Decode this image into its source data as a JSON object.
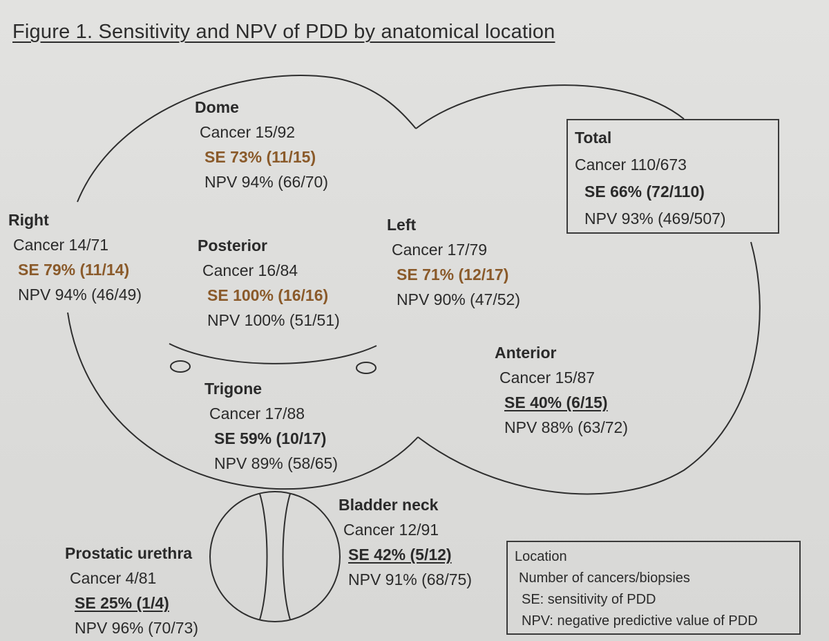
{
  "title": "Figure 1. Sensitivity and NPV of PDD by anatomical location",
  "colors": {
    "se_highlight": "#8a5a2a",
    "text": "#2a2a2a",
    "outline": "#3a3a3a"
  },
  "regions": {
    "dome": {
      "name": "Dome",
      "cancer": "Cancer 15/92",
      "se": "SE 73% (11/15)",
      "npv": "NPV 94% (66/70)"
    },
    "right": {
      "name": "Right",
      "cancer": "Cancer 14/71",
      "se": "SE 79% (11/14)",
      "npv": "NPV 94% (46/49)"
    },
    "posterior": {
      "name": "Posterior",
      "cancer": "Cancer 16/84",
      "se": "SE 100% (16/16)",
      "npv": "NPV 100% (51/51)"
    },
    "left": {
      "name": "Left",
      "cancer": "Cancer 17/79",
      "se": "SE 71% (12/17)",
      "npv": "NPV 90% (47/52)"
    },
    "anterior": {
      "name": "Anterior",
      "cancer": "Cancer 15/87",
      "se": "SE 40% (6/15)",
      "npv": "NPV 88% (63/72)"
    },
    "trigone": {
      "name": "Trigone",
      "cancer": "Cancer 17/88",
      "se": "SE 59% (10/17)",
      "npv": "NPV 89% (58/65)"
    },
    "bladder_neck": {
      "name": "Bladder neck",
      "cancer": "Cancer 12/91",
      "se": "SE 42% (5/12)",
      "npv": "NPV 91% (68/75)"
    },
    "prostatic_urethra": {
      "name": "Prostatic urethra",
      "cancer": "Cancer 4/81",
      "se": "SE 25% (1/4)",
      "npv": "NPV 96% (70/73)"
    }
  },
  "total": {
    "name": "Total",
    "cancer": "Cancer 110/673",
    "se": "SE 66% (72/110)",
    "npv": "NPV 93% (469/507)"
  },
  "legend": {
    "heading": "Location",
    "line1": "Number of cancers/biopsies",
    "line2": "SE: sensitivity of PDD",
    "line3": "NPV: negative predictive value of PDD"
  }
}
